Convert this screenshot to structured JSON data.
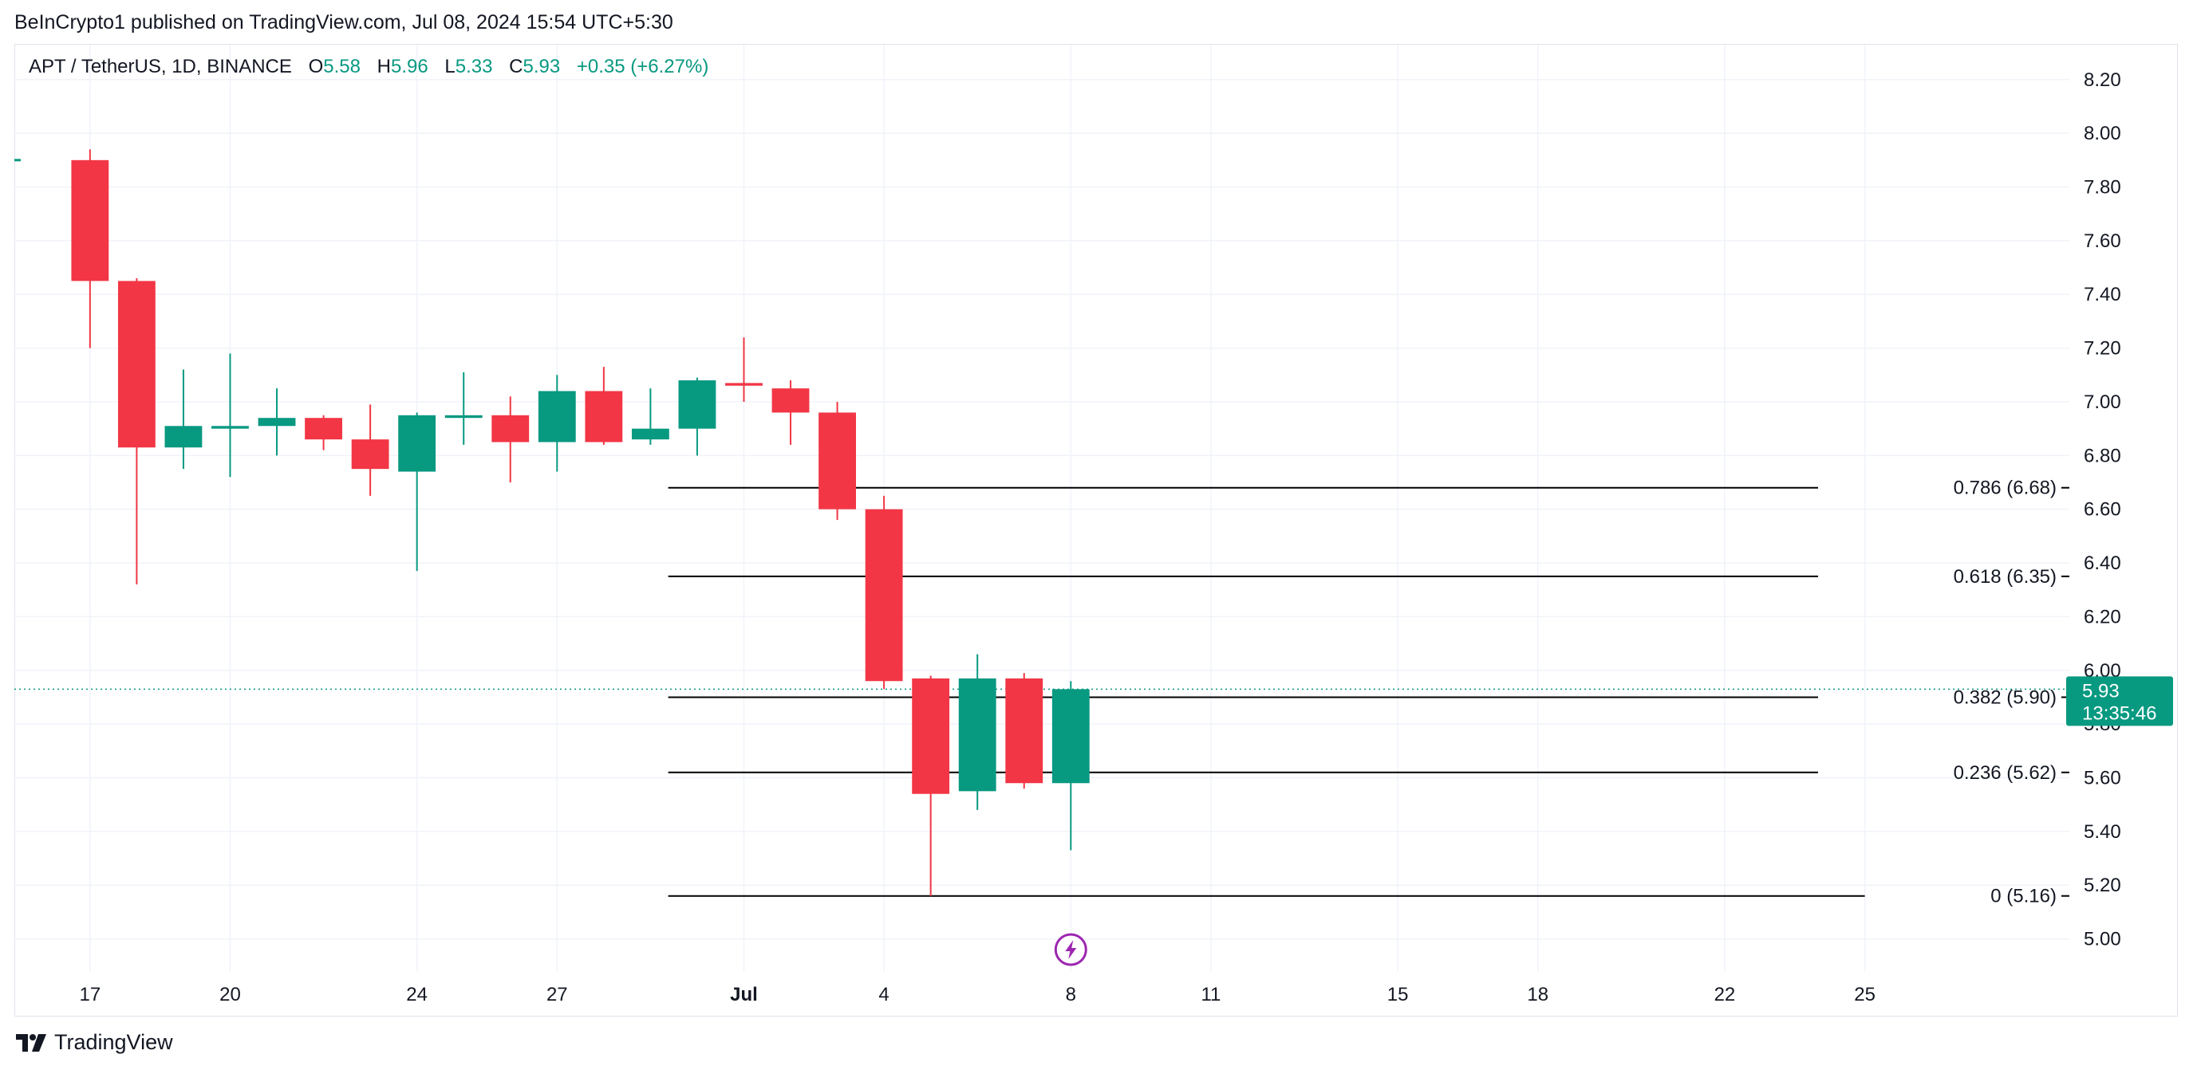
{
  "header": {
    "publish_line": "BeInCrypto1 published on TradingView.com, Jul 08, 2024 15:54 UTC+5:30"
  },
  "legend": {
    "symbol": "APT / TetherUS, 1D, BINANCE",
    "open_label": "O",
    "open": "5.58",
    "high_label": "H",
    "high": "5.96",
    "low_label": "L",
    "low": "5.33",
    "close_label": "C",
    "close": "5.93",
    "change": "+0.35 (+6.27%)"
  },
  "price_tag": {
    "price": "5.93",
    "countdown": "13:35:46"
  },
  "footer": {
    "brand": "TradingView"
  },
  "colors": {
    "up": "#089981",
    "down": "#f23645",
    "grid": "#f0f3fa",
    "text": "#131722",
    "fib_line": "#000000",
    "event_icon": "#9c27b0"
  },
  "chart_data": {
    "type": "candlestick",
    "interval": "1D",
    "y_axis_ticks": [
      5.0,
      5.2,
      5.4,
      5.6,
      5.8,
      6.0,
      6.2,
      6.4,
      6.6,
      6.8,
      7.0,
      7.2,
      7.4,
      7.6,
      7.8,
      8.0,
      8.2
    ],
    "y_range": [
      4.88,
      8.33
    ],
    "x_range": [
      "2024-06-16",
      "2024-07-30"
    ],
    "x_axis_ticks": [
      {
        "date": "2024-06-17",
        "label": "17",
        "bold": false
      },
      {
        "date": "2024-06-20",
        "label": "20",
        "bold": false
      },
      {
        "date": "2024-06-24",
        "label": "24",
        "bold": false
      },
      {
        "date": "2024-06-27",
        "label": "27",
        "bold": false
      },
      {
        "date": "2024-07-01",
        "label": "Jul",
        "bold": true
      },
      {
        "date": "2024-07-04",
        "label": "4",
        "bold": false
      },
      {
        "date": "2024-07-08",
        "label": "8",
        "bold": false
      },
      {
        "date": "2024-07-11",
        "label": "11",
        "bold": false
      },
      {
        "date": "2024-07-15",
        "label": "15",
        "bold": false
      },
      {
        "date": "2024-07-18",
        "label": "18",
        "bold": false
      },
      {
        "date": "2024-07-22",
        "label": "22",
        "bold": false
      },
      {
        "date": "2024-07-25",
        "label": "25",
        "bold": false
      }
    ],
    "candles": [
      {
        "date": "2024-06-17",
        "open": 7.9,
        "high": 7.94,
        "low": 7.2,
        "close": 7.45
      },
      {
        "date": "2024-06-18",
        "open": 7.45,
        "high": 7.46,
        "low": 6.32,
        "close": 6.83
      },
      {
        "date": "2024-06-19",
        "open": 6.83,
        "high": 7.12,
        "low": 6.75,
        "close": 6.91
      },
      {
        "date": "2024-06-20",
        "open": 6.9,
        "high": 7.18,
        "low": 6.72,
        "close": 6.91
      },
      {
        "date": "2024-06-21",
        "open": 6.91,
        "high": 7.05,
        "low": 6.8,
        "close": 6.94
      },
      {
        "date": "2024-06-22",
        "open": 6.94,
        "high": 6.95,
        "low": 6.82,
        "close": 6.86
      },
      {
        "date": "2024-06-23",
        "open": 6.86,
        "high": 6.99,
        "low": 6.65,
        "close": 6.75
      },
      {
        "date": "2024-06-24",
        "open": 6.74,
        "high": 6.96,
        "low": 6.37,
        "close": 6.95
      },
      {
        "date": "2024-06-25",
        "open": 6.94,
        "high": 7.11,
        "low": 6.84,
        "close": 6.95
      },
      {
        "date": "2024-06-26",
        "open": 6.95,
        "high": 7.02,
        "low": 6.7,
        "close": 6.85
      },
      {
        "date": "2024-06-27",
        "open": 6.85,
        "high": 7.1,
        "low": 6.74,
        "close": 7.04
      },
      {
        "date": "2024-06-28",
        "open": 7.04,
        "high": 7.13,
        "low": 6.84,
        "close": 6.85
      },
      {
        "date": "2024-06-29",
        "open": 6.86,
        "high": 7.05,
        "low": 6.84,
        "close": 6.9
      },
      {
        "date": "2024-06-30",
        "open": 6.9,
        "high": 7.09,
        "low": 6.8,
        "close": 7.08
      },
      {
        "date": "2024-07-01",
        "open": 7.07,
        "high": 7.24,
        "low": 7.0,
        "close": 7.06
      },
      {
        "date": "2024-07-02",
        "open": 7.05,
        "high": 7.08,
        "low": 6.84,
        "close": 6.96
      },
      {
        "date": "2024-07-03",
        "open": 6.96,
        "high": 7.0,
        "low": 6.56,
        "close": 6.6
      },
      {
        "date": "2024-07-04",
        "open": 6.6,
        "high": 6.65,
        "low": 5.93,
        "close": 5.96
      },
      {
        "date": "2024-07-05",
        "open": 5.97,
        "high": 5.98,
        "low": 5.16,
        "close": 5.54
      },
      {
        "date": "2024-07-06",
        "open": 5.55,
        "high": 6.06,
        "low": 5.48,
        "close": 5.97
      },
      {
        "date": "2024-07-07",
        "open": 5.97,
        "high": 5.99,
        "low": 5.56,
        "close": 5.58
      },
      {
        "date": "2024-07-08",
        "open": 5.58,
        "high": 5.96,
        "low": 5.33,
        "close": 5.93
      }
    ],
    "current_price": 5.93,
    "fib_levels": [
      {
        "ratio": "0.786",
        "price": 6.68,
        "label": "0.786 (6.68)",
        "start": "2024-06-30",
        "end": "2024-07-24"
      },
      {
        "ratio": "0.618",
        "price": 6.35,
        "label": "0.618 (6.35)",
        "start": "2024-06-30",
        "end": "2024-07-24"
      },
      {
        "ratio": "0.382",
        "price": 5.9,
        "label": "0.382 (5.90)",
        "start": "2024-06-30",
        "end": "2024-07-24"
      },
      {
        "ratio": "0.236",
        "price": 5.62,
        "label": "0.236 (5.62)",
        "start": "2024-06-30",
        "end": "2024-07-24"
      },
      {
        "ratio": "0",
        "price": 5.16,
        "label": "0 (5.16)",
        "start": "2024-06-30",
        "end": "2024-07-25"
      }
    ],
    "events": [
      {
        "date": "2024-07-08",
        "icon": "lightning-icon"
      }
    ]
  }
}
